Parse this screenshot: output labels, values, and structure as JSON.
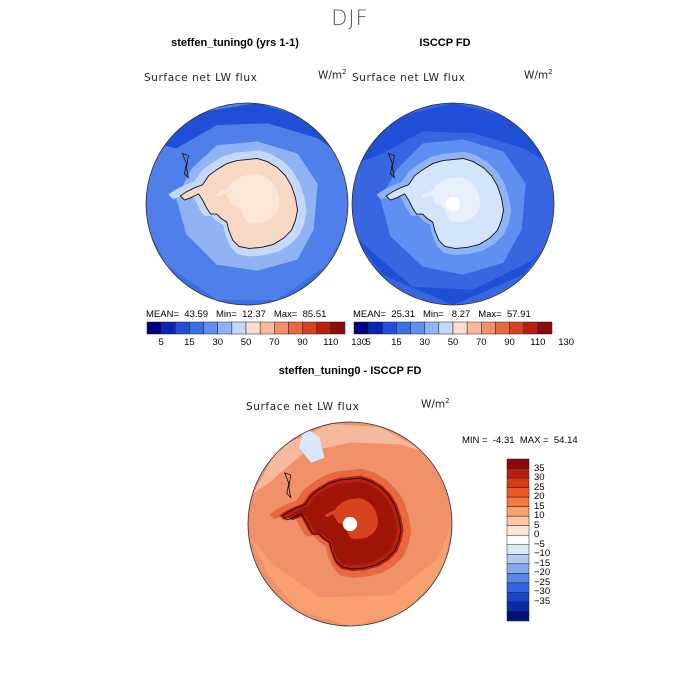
{
  "figure": {
    "title": "DJF"
  },
  "panels": [
    {
      "title": "steffen_tuning0 (yrs 1-1)",
      "field_label": "Surface net LW flux",
      "units": "W/m",
      "units_sup": "2",
      "stats": {
        "mean_label": "MEAN=",
        "mean": "43.59",
        "min_label": "Min=",
        "min": "12.37",
        "max_label": "Max=",
        "max": "85.51"
      },
      "map": {
        "projection": "south-polar stereographic",
        "pattern": "light peach over Antarctica, blues over ocean"
      }
    },
    {
      "title": "ISCCP FD",
      "field_label": "Surface net LW flux",
      "units": "W/m",
      "units_sup": "2",
      "stats": {
        "mean_label": "MEAN=",
        "mean": "25.31",
        "min_label": "Min=",
        "min": "8.27",
        "max_label": "Max=",
        "max": "57.91"
      },
      "map": {
        "projection": "south-polar stereographic",
        "pattern": "pale blue over Antarctica, blues over ocean, white pole hole"
      }
    },
    {
      "title": "steffen_tuning0 - ISCCP FD",
      "field_label": "Surface net LW flux",
      "units": "W/m",
      "units_sup": "2",
      "stats": {
        "min_label": "MIN =",
        "min": "-4.31",
        "max_label": "MAX =",
        "max": "54.14"
      },
      "map": {
        "projection": "south-polar stereographic",
        "pattern": "dark red over Antarctica, oranges elsewhere"
      }
    }
  ],
  "colorbar_abs": {
    "colors": [
      "#000080",
      "#0a24b4",
      "#1f4fd6",
      "#3b6de6",
      "#5f8ff0",
      "#8fb3f5",
      "#c4d9fa",
      "#f9dccc",
      "#f7b99b",
      "#f0906a",
      "#e8683f",
      "#d8431f",
      "#b81f10",
      "#8b0a0a"
    ],
    "tick_labels": [
      "5",
      "15",
      "30",
      "50",
      "70",
      "90",
      "110",
      "130"
    ]
  },
  "colorbar_diff": {
    "colors": [
      "#8b0a0a",
      "#b81f10",
      "#d93a12",
      "#ec5a24",
      "#f47a3f",
      "#f8a070",
      "#fcc8a8",
      "#fde6d6",
      "#ffffff",
      "#dbe8fb",
      "#b2c9f5",
      "#86a8ee",
      "#5a86e6",
      "#3263dc",
      "#1744c8",
      "#0a2aa8",
      "#00137a"
    ],
    "tick_labels": [
      "35",
      "30",
      "25",
      "20",
      "15",
      "10",
      "5",
      "0",
      "−5",
      "−10",
      "−15",
      "−20",
      "−25",
      "−30",
      "−35"
    ]
  },
  "colors": {
    "coast": "#111111",
    "land_model": "#f7d8c4",
    "land_obs": "#d4e4fa",
    "land_diff": "#9e1508",
    "ocean_model": "#4f7fe8",
    "ocean_obs": "#3766e0",
    "ocean_diff": "#f1916a"
  }
}
